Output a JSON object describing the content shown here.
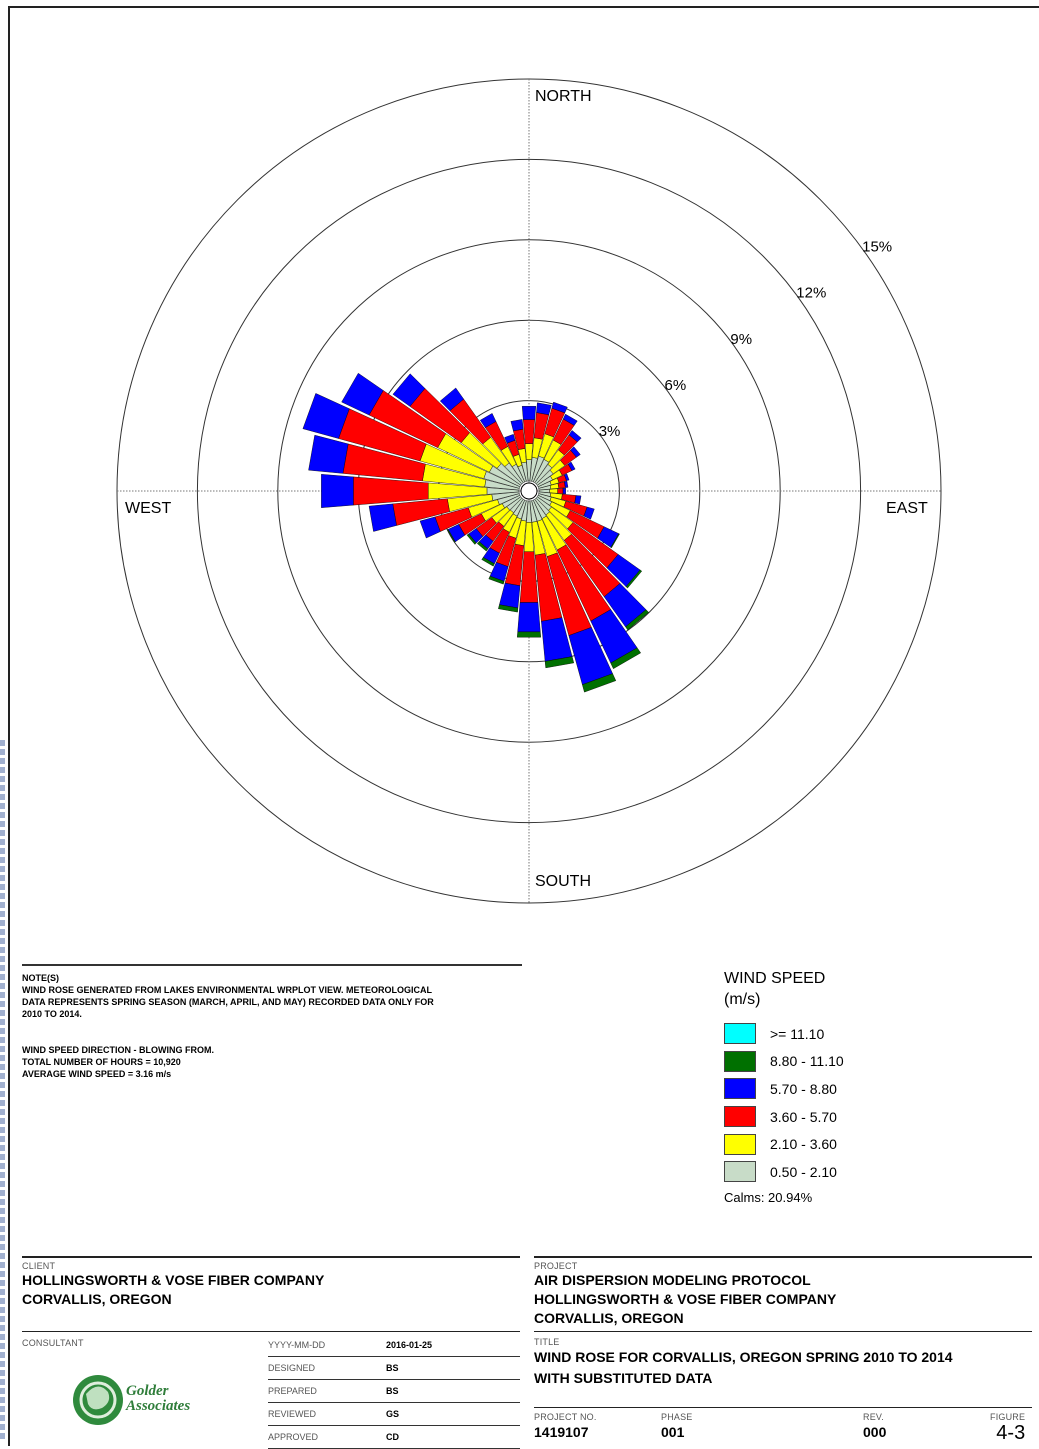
{
  "chart_data": {
    "type": "wind-rose",
    "directions": [
      "N",
      "NNE",
      "NE",
      "ENE",
      "E",
      "ESE",
      "SE",
      "SSE",
      "S",
      "SSW",
      "SW",
      "WSW",
      "W",
      "WNW",
      "NW",
      "NNW"
    ],
    "ring_labels": [
      "3%",
      "6%",
      "9%",
      "12%",
      "15%"
    ],
    "compass_labels": {
      "north": "NORTH",
      "south": "SOUTH",
      "east": "EAST",
      "west": "WEST"
    },
    "speed_bins": [
      "0.50 - 2.10",
      "2.10 - 3.60",
      "3.60 - 5.70",
      "5.70 - 8.80",
      "8.80 - 11.10",
      ">= 11.10"
    ],
    "bin_colors": [
      "#c8dcc8",
      "#ffff00",
      "#ff0000",
      "#0000ff",
      "#007000",
      "#00ffff"
    ],
    "cumulative_percent": [
      [
        0.8,
        1.4,
        2.3,
        2.8,
        2.8,
        2.8
      ],
      [
        1.0,
        1.9,
        2.9,
        3.1,
        3.1,
        3.1
      ],
      [
        0.8,
        1.4,
        2.0,
        2.2,
        2.2,
        2.2
      ],
      [
        0.5,
        0.8,
        1.1,
        1.2,
        1.2,
        1.2
      ],
      [
        0.4,
        0.7,
        0.9,
        1.0,
        1.0,
        1.0
      ],
      [
        0.5,
        1.1,
        2.0,
        2.3,
        2.3,
        2.3
      ],
      [
        0.7,
        1.8,
        4.2,
        5.4,
        5.5,
        5.5
      ],
      [
        0.8,
        2.2,
        5.4,
        7.4,
        7.7,
        7.7
      ],
      [
        0.8,
        1.9,
        3.8,
        4.9,
        5.1,
        5.1
      ],
      [
        0.7,
        1.4,
        2.4,
        2.9,
        3.0,
        3.0
      ],
      [
        0.6,
        1.2,
        1.8,
        2.1,
        2.2,
        2.2
      ],
      [
        0.8,
        1.8,
        2.9,
        3.4,
        3.4,
        3.4
      ],
      [
        1.2,
        3.4,
        6.2,
        7.4,
        7.4,
        7.4
      ],
      [
        1.4,
        3.9,
        7.1,
        8.5,
        8.5,
        8.5
      ],
      [
        1.0,
        2.4,
        4.5,
        5.1,
        5.1,
        5.1
      ],
      [
        0.6,
        1.0,
        1.5,
        1.7,
        1.7,
        1.7
      ]
    ],
    "rmax": 15,
    "grid": true
  },
  "notes": {
    "heading": "NOTE(S)",
    "para1": "WIND ROSE GENERATED FROM LAKES ENVIRONMENTAL WRPLOT VIEW. METEOROLOGICAL\nDATA REPRESENTS SPRING SEASON (MARCH, APRIL, AND MAY) RECORDED DATA ONLY FOR\n2010 TO 2014.",
    "para2": "WIND SPEED DIRECTION - BLOWING FROM.\nTOTAL NUMBER OF HOURS = 10,920\nAVERAGE WIND SPEED = 3.16 m/s"
  },
  "legend": {
    "title": "WIND SPEED\n(m/s)",
    "rows": [
      {
        "label": ">= 11.10",
        "color": "#00ffff"
      },
      {
        "label": "8.80 - 11.10",
        "color": "#007000"
      },
      {
        "label": "5.70 - 8.80",
        "color": "#0000ff"
      },
      {
        "label": "3.60 - 5.70",
        "color": "#ff0000"
      },
      {
        "label": "2.10 - 3.60",
        "color": "#ffff00"
      },
      {
        "label": "0.50 - 2.10",
        "color": "#c8dcc8"
      }
    ],
    "calms": "Calms: 20.94%"
  },
  "titleblock": {
    "client_label": "CLIENT",
    "client_line1": "HOLLINGSWORTH & VOSE FIBER COMPANY",
    "client_line2": "CORVALLIS, OREGON",
    "consultant_label": "CONSULTANT",
    "logo_text": "Golder\nAssociates",
    "fields": [
      {
        "key": "YYYY-MM-DD",
        "value": "2016-01-25"
      },
      {
        "key": "DESIGNED",
        "value": "BS"
      },
      {
        "key": "PREPARED",
        "value": "BS"
      },
      {
        "key": "REVIEWED",
        "value": "GS"
      },
      {
        "key": "APPROVED",
        "value": "CD"
      }
    ],
    "project_label": "PROJECT",
    "project_line1": "AIR DISPERSION MODELING PROTOCOL",
    "project_line2": "HOLLINGSWORTH & VOSE FIBER COMPANY",
    "project_line3": "CORVALLIS, OREGON",
    "title_label": "TITLE",
    "title_line1": "WIND ROSE FOR CORVALLIS, OREGON SPRING 2010 TO 2014",
    "title_line2": "WITH SUBSTITUTED DATA",
    "project_no_label": "PROJECT NO.",
    "project_no": "1419107",
    "phase_label": "PHASE",
    "phase": "001",
    "rev_label": "REV.",
    "rev": "000",
    "figure_label": "FIGURE",
    "figure": "4-3"
  }
}
